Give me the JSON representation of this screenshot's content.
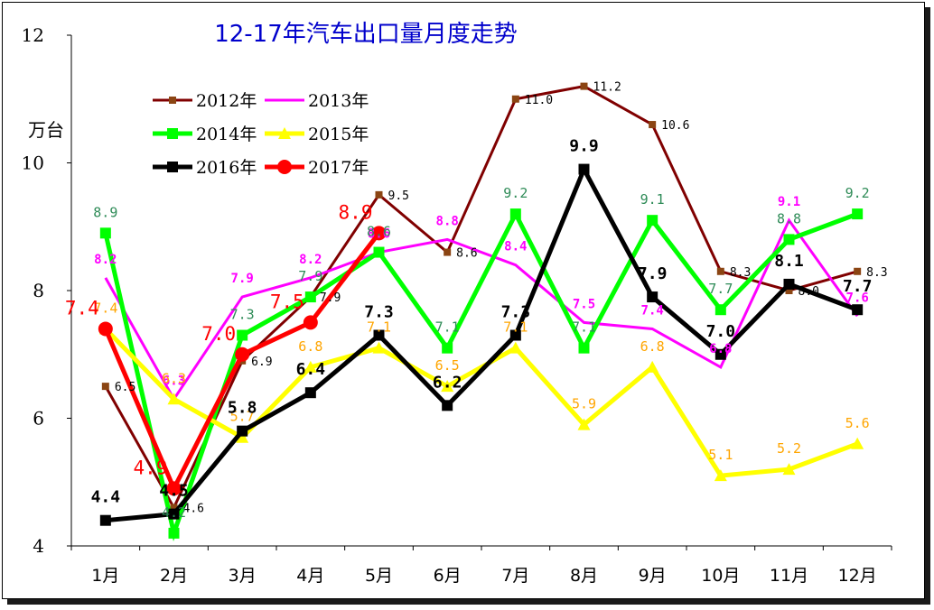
{
  "chart_data": {
    "type": "line",
    "title": "12-17年汽车出口量月度走势",
    "ylabel": "万台",
    "xlabel": "",
    "ylim": [
      4,
      12
    ],
    "yticks": [
      4,
      6,
      8,
      10,
      12
    ],
    "categories": [
      "1月",
      "2月",
      "3月",
      "4月",
      "5月",
      "6月",
      "7月",
      "8月",
      "9月",
      "10月",
      "11月",
      "12月"
    ],
    "legend_position": "top-left",
    "grid": false,
    "series": [
      {
        "name": "2012年",
        "color": "#800000",
        "marker": "square-small",
        "values": [
          6.5,
          4.6,
          6.9,
          7.9,
          9.5,
          8.6,
          11.0,
          11.2,
          10.6,
          8.3,
          8.0,
          8.3
        ],
        "labels": [
          "6.5",
          "4.6",
          "6.9",
          "7.9",
          "9.5",
          "8.6",
          "11.0",
          "11.2",
          "10.6",
          "8.3",
          "8.0",
          "8.3"
        ],
        "label_color": "#000000"
      },
      {
        "name": "2013年",
        "color": "#ff00ff",
        "marker": "none",
        "values": [
          8.2,
          6.3,
          7.9,
          8.2,
          8.6,
          8.8,
          8.4,
          7.5,
          7.4,
          6.8,
          9.1,
          7.6
        ],
        "labels": [
          "8.2",
          "6.3",
          "7.9",
          "8.2",
          "8.6",
          "8.8",
          "8.4",
          "7.5",
          "7.4",
          "6.8",
          "9.1",
          "7.6"
        ],
        "label_color": "#ff00ff"
      },
      {
        "name": "2014年",
        "color": "#00ff00",
        "marker": "square",
        "values": [
          8.9,
          4.2,
          7.3,
          7.9,
          8.6,
          7.1,
          9.2,
          7.1,
          9.1,
          7.7,
          8.8,
          9.2
        ],
        "labels": [
          "8.9",
          "4.2",
          "7.3",
          "7.9",
          "8.6",
          "7.1",
          "9.2",
          "7.1",
          "9.1",
          "7.7",
          "8.8",
          "9.2"
        ],
        "label_color": "#2e8b57"
      },
      {
        "name": "2015年",
        "color": "#ffff00",
        "marker": "triangle",
        "values": [
          7.4,
          6.3,
          5.7,
          6.8,
          7.1,
          6.5,
          7.1,
          5.9,
          6.8,
          5.1,
          5.2,
          5.6
        ],
        "labels": [
          "7.4",
          "6.3",
          "5.7",
          "6.8",
          "7.1",
          "6.5",
          "7.1",
          "5.9",
          "6.8",
          "5.1",
          "5.2",
          "5.6"
        ],
        "label_color": "#ffa500"
      },
      {
        "name": "2016年",
        "color": "#000000",
        "marker": "square",
        "values": [
          4.4,
          4.5,
          5.8,
          6.4,
          7.3,
          6.2,
          7.3,
          9.9,
          7.9,
          7.0,
          8.1,
          7.7
        ],
        "labels": [
          "4.4",
          "4.5",
          "5.8",
          "6.4",
          "7.3",
          "6.2",
          "7.3",
          "9.9",
          "7.9",
          "7.0",
          "8.1",
          "7.7"
        ],
        "label_color": "#000000"
      },
      {
        "name": "2017年",
        "color": "#ff0000",
        "marker": "circle",
        "values": [
          7.4,
          4.9,
          7.0,
          7.5,
          8.9,
          null,
          null,
          null,
          null,
          null,
          null,
          null
        ],
        "labels": [
          "7.4",
          "4.9",
          "7.0",
          "7.5",
          "8.9"
        ],
        "label_color": "#ff0000"
      }
    ]
  }
}
